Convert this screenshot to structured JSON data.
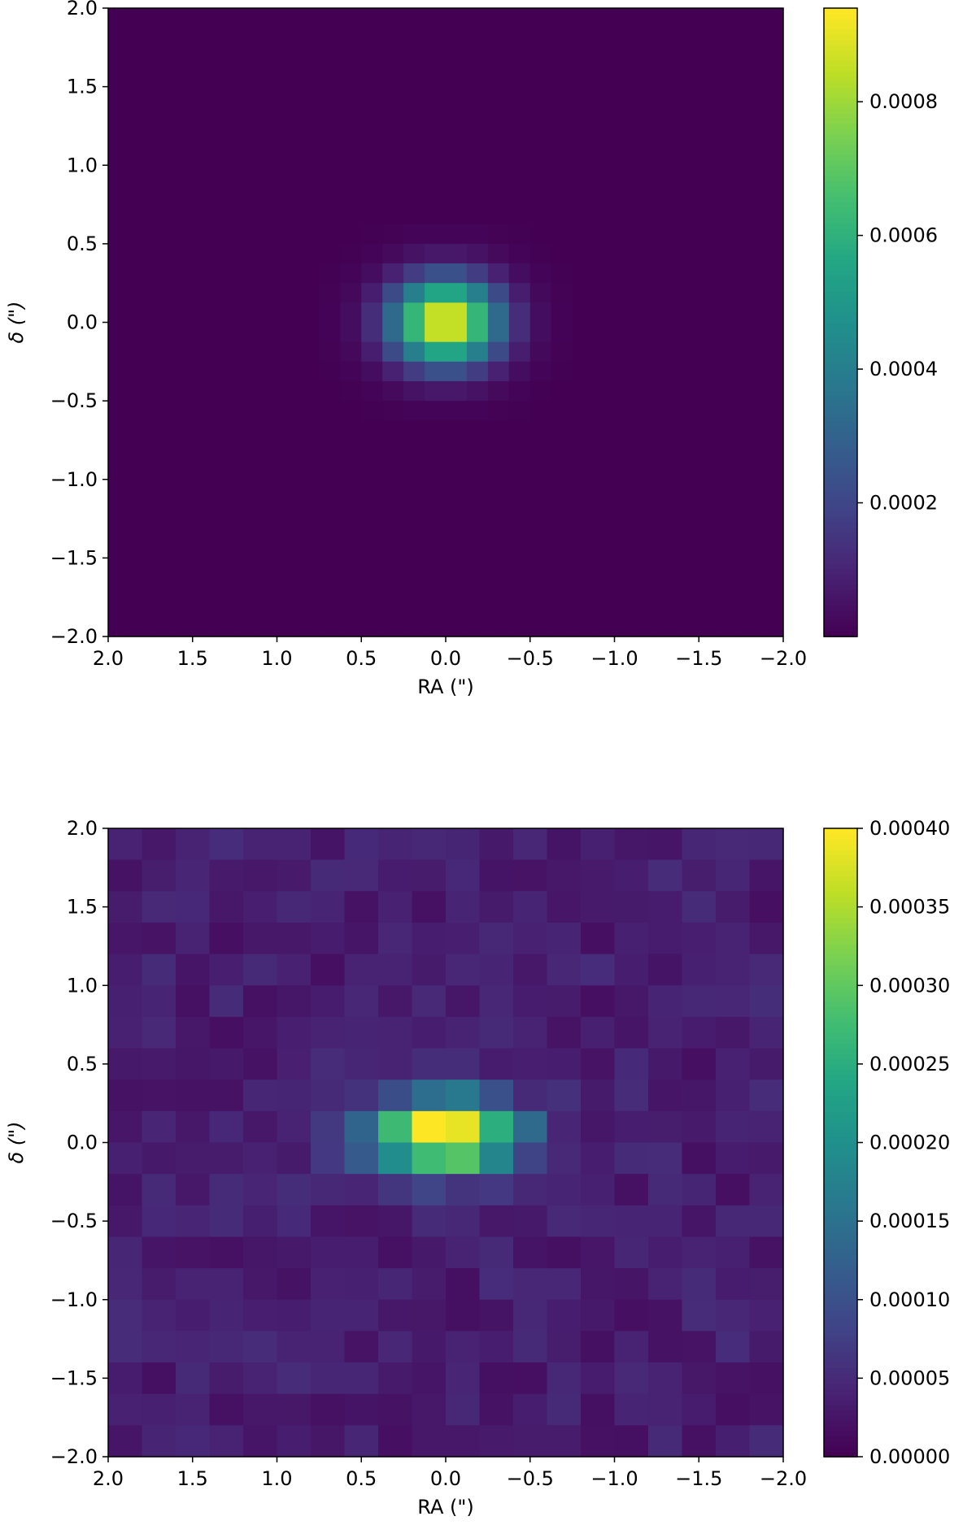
{
  "chart_data": [
    {
      "type": "heatmap",
      "title": "",
      "xlabel": "RA (\")",
      "ylabel": "δ (\")",
      "xlim": [
        2.0,
        -2.0
      ],
      "ylim": [
        -2.0,
        2.0
      ],
      "xticks": [
        "2.0",
        "1.5",
        "1.0",
        "0.5",
        "0.0",
        "−0.5",
        "−1.0",
        "−1.5",
        "−2.0"
      ],
      "yticks": [
        "−2.0",
        "−1.5",
        "−1.0",
        "−0.5",
        "0.0",
        "0.5",
        "1.0",
        "1.5",
        "2.0"
      ],
      "grid_size": 32,
      "colormap": "viridis",
      "model": "gaussian",
      "peak": 0.00094,
      "center_ra": 0.0,
      "center_dec": 0.0,
      "sigma_ra": 0.22,
      "sigma_dec": 0.19,
      "colorbar": {
        "min": 0.0,
        "max": 0.00094,
        "ticks": [
          {
            "value": 0.0002,
            "label": "0.0002"
          },
          {
            "value": 0.0004,
            "label": "0.0004"
          },
          {
            "value": 0.0006,
            "label": "0.0006"
          },
          {
            "value": 0.0008,
            "label": "0.0008"
          }
        ]
      },
      "grid": false
    },
    {
      "type": "heatmap",
      "title": "",
      "xlabel": "RA (\")",
      "ylabel": "δ (\")",
      "xlim": [
        2.0,
        -2.0
      ],
      "ylim": [
        -2.0,
        2.0
      ],
      "xticks": [
        "2.0",
        "1.5",
        "1.0",
        "0.5",
        "0.0",
        "−0.5",
        "−1.0",
        "−1.5",
        "−2.0"
      ],
      "yticks": [
        "−2.0",
        "−1.5",
        "−1.0",
        "−0.5",
        "0.0",
        "0.5",
        "1.0",
        "1.5",
        "2.0"
      ],
      "grid_size": 20,
      "colormap": "viridis",
      "model": "gaussian_plus_noise",
      "peak": 0.0004,
      "center_ra": 0.0,
      "center_dec": 0.05,
      "sigma_ra": 0.3,
      "sigma_dec": 0.16,
      "noise_level": 4e-05,
      "colorbar": {
        "min": 0.0,
        "max": 0.0004,
        "ticks": [
          {
            "value": 0.0,
            "label": "0.00000"
          },
          {
            "value": 5e-05,
            "label": "0.00005"
          },
          {
            "value": 0.0001,
            "label": "0.00010"
          },
          {
            "value": 0.00015,
            "label": "0.00015"
          },
          {
            "value": 0.0002,
            "label": "0.00020"
          },
          {
            "value": 0.00025,
            "label": "0.00025"
          },
          {
            "value": 0.0003,
            "label": "0.00030"
          },
          {
            "value": 0.00035,
            "label": "0.00035"
          },
          {
            "value": 0.0004,
            "label": "0.00040"
          }
        ]
      },
      "grid": false
    }
  ]
}
